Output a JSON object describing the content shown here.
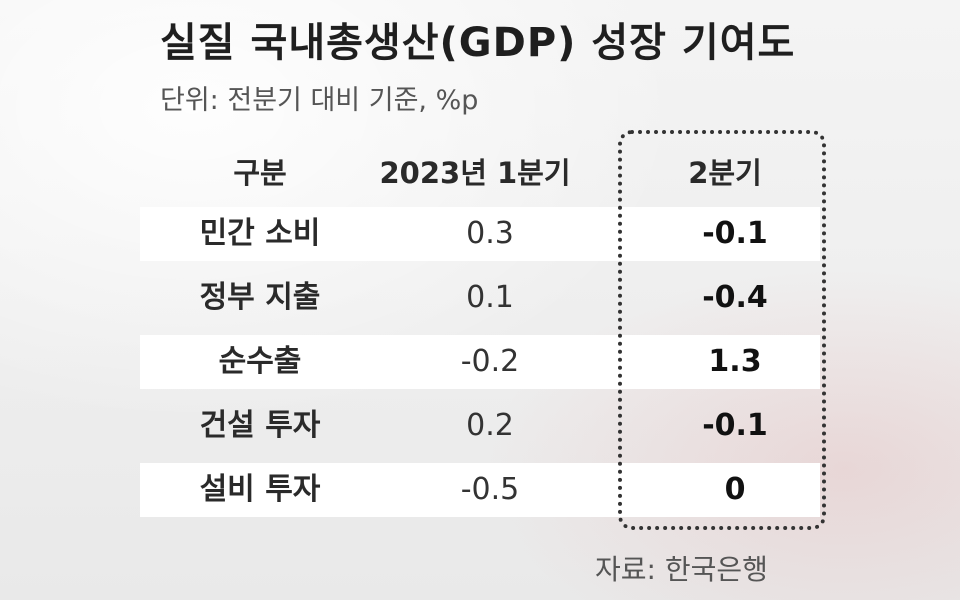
{
  "title": "실질 국내총생산(GDP) 성장 기여도",
  "subtitle": "단위: 전분기 대비 기준, %p",
  "table": {
    "headers": {
      "label": "구분",
      "q1": "2023년 1분기",
      "q2": "2분기"
    },
    "rows": [
      {
        "label": "민간 소비",
        "q1": "0.3",
        "q2": "-0.1"
      },
      {
        "label": "정부 지출",
        "q1": "0.1",
        "q2": "-0.4"
      },
      {
        "label": "순수출",
        "q1": "-0.2",
        "q2": "1.3"
      },
      {
        "label": "건설 투자",
        "q1": "0.2",
        "q2": "-0.1"
      },
      {
        "label": "설비 투자",
        "q1": "-0.5",
        "q2": "0"
      }
    ]
  },
  "source": "자료: 한국은행"
}
